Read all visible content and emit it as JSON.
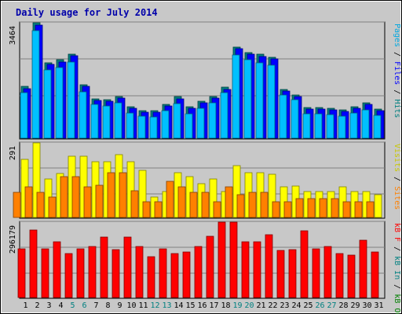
{
  "chart_data": {
    "type": "bar",
    "title": "Daily usage for July 2014",
    "categories": [
      "1",
      "2",
      "3",
      "4",
      "5",
      "6",
      "7",
      "8",
      "9",
      "10",
      "11",
      "12",
      "13",
      "14",
      "15",
      "16",
      "17",
      "18",
      "19",
      "20",
      "21",
      "22",
      "23",
      "24",
      "25",
      "26",
      "27",
      "28",
      "29",
      "30",
      "31"
    ],
    "weekend_days": [
      "5",
      "6",
      "12",
      "13",
      "19",
      "20",
      "26",
      "27"
    ],
    "grid": true,
    "panels": [
      {
        "ytick": "3464",
        "ylim": [
          0,
          3464
        ],
        "legend": [
          "Pages",
          "Files",
          "Hits"
        ],
        "legend_placement": "right",
        "series": [
          {
            "name": "Hits",
            "color": "#008080",
            "values": [
              1550,
              3464,
              2270,
              2345,
              2520,
              1600,
              1190,
              1160,
              1250,
              940,
              830,
              825,
              1020,
              1240,
              940,
              1100,
              1260,
              1525,
              2730,
              2570,
              2510,
              2420,
              1460,
              1290,
              920,
              930,
              890,
              855,
              940,
              1060,
              880
            ]
          },
          {
            "name": "Files",
            "color": "#0000ff",
            "values": [
              1495,
              3400,
              2215,
              2290,
              2475,
              1550,
              1140,
              1110,
              1195,
              890,
              780,
              775,
              970,
              1190,
              890,
              1050,
              1210,
              1470,
              2680,
              2520,
              2460,
              2370,
              1405,
              1240,
              870,
              880,
              840,
              800,
              890,
              1010,
              830
            ]
          },
          {
            "name": "Pages",
            "color": "#00c0ff",
            "values": [
              1360,
              3240,
              2040,
              2110,
              2290,
              1390,
              1020,
              965,
              1050,
              750,
              650,
              630,
              820,
              1035,
              740,
              900,
              1055,
              1355,
              2505,
              2365,
              2260,
              2195,
              1300,
              1145,
              740,
              740,
              710,
              650,
              750,
              850,
              695
            ]
          }
        ]
      },
      {
        "ytick": "291",
        "ylim": [
          0,
          291
        ],
        "legend": [
          "Visits",
          "Sites"
        ],
        "legend_placement": "right",
        "series": [
          {
            "name": "Visits",
            "color": "#ffff00",
            "values": [
              228,
              291,
              150,
              172,
              238,
              238,
              216,
              216,
              244,
              216,
              183,
              80,
              101,
              175,
              158,
              131,
              149,
              101,
              202,
              175,
              175,
              168,
              120,
              121,
              100,
              100,
              100,
              120,
              100,
              100,
              90
            ]
          },
          {
            "name": "Sites",
            "color": "#ff8000",
            "values": [
              97,
              120,
              97,
              80,
              160,
              160,
              120,
              125,
              175,
              175,
              105,
              60,
              60,
              140,
              120,
              97,
              97,
              60,
              120,
              90,
              99,
              97,
              60,
              60,
              72,
              72,
              72,
              72,
              60,
              60,
              60
            ]
          }
        ]
      },
      {
        "ytick": "296179",
        "ylim": [
          0,
          296179
        ],
        "legend": [
          "kB F",
          "kB In",
          "kB Out"
        ],
        "legend_placement": "right",
        "series": [
          {
            "name": "kB F",
            "color": "#ff0000",
            "values": [
              190000,
              265000,
              190000,
              220000,
              172000,
              192000,
              200000,
              238000,
              188000,
              238000,
              200000,
              160000,
              190000,
              172000,
              178000,
              200000,
              240000,
              296179,
              296179,
              220000,
              220000,
              248000,
              184000,
              188000,
              263000,
              190000,
              200000,
              172000,
              168000,
              225000,
              178000
            ]
          }
        ]
      }
    ]
  }
}
